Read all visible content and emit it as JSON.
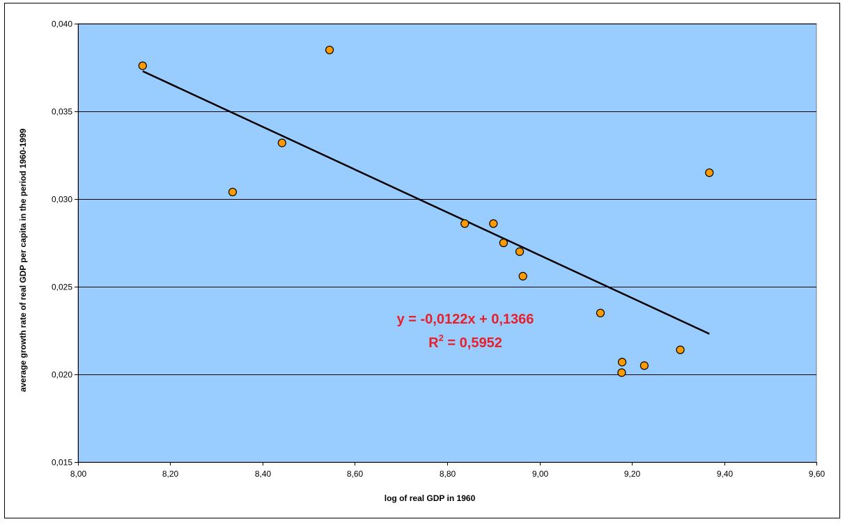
{
  "chart_data": {
    "type": "scatter",
    "title": "",
    "xlabel": "log of real GDP in 1960",
    "ylabel": "average growth rate of real GDP per capita in the period 1960-1999",
    "xlim": [
      8.0,
      9.6
    ],
    "ylim": [
      0.015,
      0.04
    ],
    "x_ticks": [
      8.0,
      8.2,
      8.4,
      8.6,
      8.8,
      9.0,
      9.2,
      9.4,
      9.6
    ],
    "x_tick_labels": [
      "8,00",
      "8,20",
      "8,40",
      "8,60",
      "8,80",
      "9,00",
      "9,20",
      "9,40",
      "9,60"
    ],
    "y_ticks": [
      0.015,
      0.02,
      0.025,
      0.03,
      0.035,
      0.04
    ],
    "y_tick_labels": [
      "0,015",
      "0,020",
      "0,025",
      "0,030",
      "0,035",
      "0,040"
    ],
    "grid": "horizontal",
    "legend": "none",
    "colors": {
      "plot_background": "#99ccff",
      "marker_fill": "#ff9900",
      "marker_stroke": "#000000",
      "trendline": "#000000",
      "equation_text": "#e8202a",
      "gridline": "#000000"
    },
    "points": [
      {
        "x": 8.14,
        "y": 0.0376
      },
      {
        "x": 8.335,
        "y": 0.0304
      },
      {
        "x": 8.442,
        "y": 0.0332
      },
      {
        "x": 8.545,
        "y": 0.0385
      },
      {
        "x": 8.838,
        "y": 0.0286
      },
      {
        "x": 8.9,
        "y": 0.0286
      },
      {
        "x": 8.922,
        "y": 0.0275
      },
      {
        "x": 8.957,
        "y": 0.027
      },
      {
        "x": 8.964,
        "y": 0.0256
      },
      {
        "x": 9.132,
        "y": 0.0235
      },
      {
        "x": 9.178,
        "y": 0.0201
      },
      {
        "x": 9.179,
        "y": 0.0207
      },
      {
        "x": 9.227,
        "y": 0.0205
      },
      {
        "x": 9.305,
        "y": 0.0214
      },
      {
        "x": 9.368,
        "y": 0.0315
      }
    ],
    "trendline": {
      "slope": -0.0122,
      "intercept": 0.1366,
      "x_start": 8.14,
      "x_end": 9.368
    },
    "annotation": {
      "equation": "y = -0,0122x + 0,1366",
      "r2_prefix": "R",
      "r2_superscript": "2",
      "r2_suffix": " = 0,5952"
    }
  }
}
